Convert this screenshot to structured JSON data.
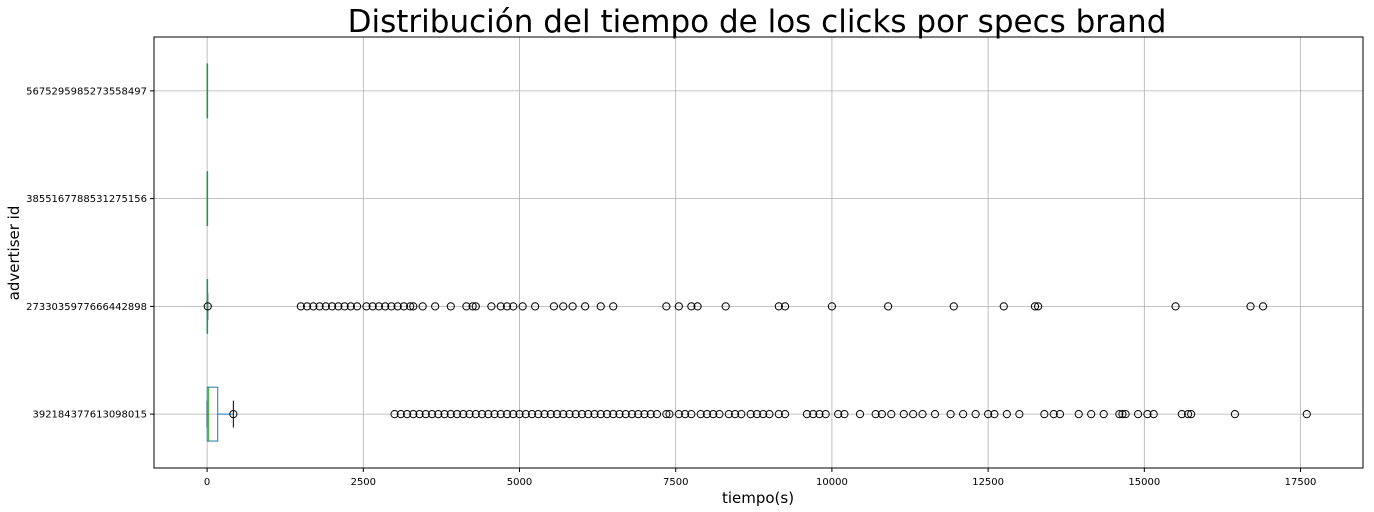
{
  "chart_data": {
    "type": "boxplot",
    "orientation": "horizontal",
    "title": "Distribución del tiempo de los clicks por specs brand",
    "xlabel": "tiempo(s)",
    "ylabel": "advertiser id",
    "xlim": [
      -850,
      18500
    ],
    "xticks": [
      0,
      2500,
      5000,
      7500,
      10000,
      12500,
      15000,
      17500
    ],
    "xtick_labels": [
      "0",
      "2500",
      "5000",
      "7500",
      "10000",
      "12500",
      "15000",
      "17500"
    ],
    "grid": true,
    "colors": {
      "box": "#1f77b4",
      "median": "#2ca02c",
      "whisker": "#1f77b4",
      "flier": "#000000",
      "grid": "#b0b0b0"
    },
    "categories": [
      "392184377613098015",
      "2733035977666442898",
      "3855167788531275156",
      "5675295985273558497"
    ],
    "series": [
      {
        "category": "392184377613098015",
        "whislo": 0,
        "q1": 2,
        "med": 25,
        "q3": 170,
        "whishi": 420,
        "fliers": [
          420,
          3000,
          3100,
          3200,
          3300,
          3400,
          3500,
          3600,
          3700,
          3800,
          3900,
          4000,
          4100,
          4200,
          4300,
          4400,
          4500,
          4600,
          4700,
          4800,
          4900,
          5000,
          5100,
          5200,
          5300,
          5400,
          5500,
          5600,
          5700,
          5800,
          5900,
          6000,
          6100,
          6200,
          6300,
          6400,
          6500,
          6600,
          6700,
          6800,
          6900,
          7000,
          7100,
          7200,
          7350,
          7400,
          7550,
          7650,
          7750,
          7900,
          8000,
          8100,
          8200,
          8350,
          8450,
          8550,
          8700,
          8800,
          8900,
          9000,
          9150,
          9250,
          9600,
          9700,
          9800,
          9900,
          10100,
          10200,
          10450,
          10700,
          10800,
          10950,
          11150,
          11300,
          11450,
          11650,
          11900,
          12100,
          12300,
          12500,
          12600,
          12800,
          13000,
          13400,
          13550,
          13650,
          13950,
          14150,
          14350,
          14600,
          14650,
          14700,
          14900,
          15050,
          15150,
          15600,
          15700,
          15750,
          16450,
          17600
        ]
      },
      {
        "category": "2733035977666442898",
        "whislo": 0,
        "q1": 0,
        "med": 1,
        "q3": 4,
        "whishi": 10,
        "fliers": [
          10,
          1500,
          1600,
          1700,
          1800,
          1900,
          2000,
          2100,
          2200,
          2300,
          2400,
          2550,
          2650,
          2750,
          2850,
          2950,
          3050,
          3150,
          3250,
          3300,
          3450,
          3650,
          3900,
          4150,
          4250,
          4300,
          4550,
          4700,
          4800,
          4900,
          5050,
          5250,
          5550,
          5700,
          5850,
          6050,
          6300,
          6500,
          7350,
          7550,
          7750,
          7850,
          8300,
          9150,
          9250,
          10000,
          10900,
          11950,
          12750,
          13250,
          13300,
          15500,
          16700,
          16900
        ]
      },
      {
        "category": "3855167788531275156",
        "whislo": 0,
        "q1": 0,
        "med": 0,
        "q3": 0,
        "whishi": 0,
        "fliers": []
      },
      {
        "category": "5675295985273558497",
        "whislo": 0,
        "q1": 0,
        "med": 0,
        "q3": 0,
        "whishi": 0,
        "fliers": []
      }
    ]
  }
}
